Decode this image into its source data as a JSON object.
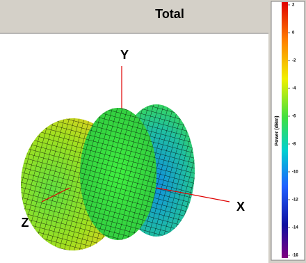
{
  "panel": {
    "title": "Total",
    "axes": {
      "y": "Y",
      "x": "X",
      "z": "Z"
    }
  },
  "colorbar": {
    "label": "Power (dBm)",
    "lim": [
      -16,
      2
    ],
    "ticks": [
      2,
      0,
      -2,
      -4,
      -6,
      -8,
      -10,
      -12,
      -14,
      -16
    ]
  }
}
